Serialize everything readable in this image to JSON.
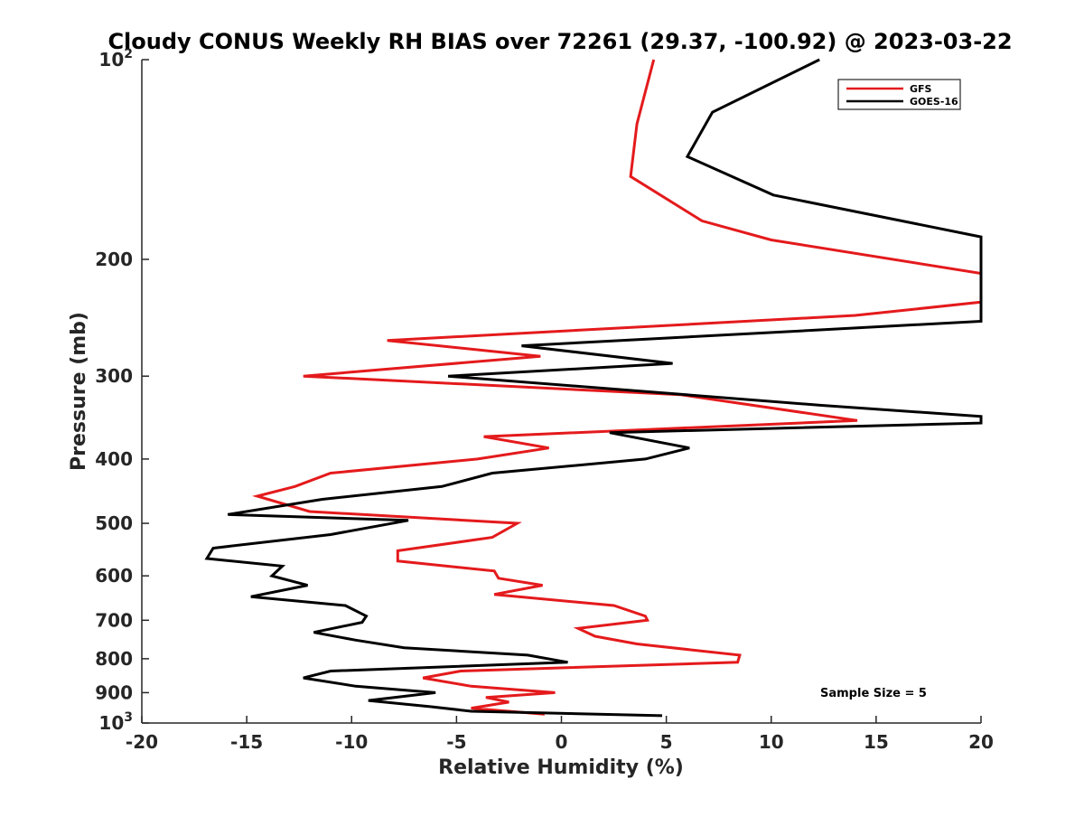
{
  "chart_data": {
    "type": "line",
    "title": "Cloudy CONUS Weekly RH BIAS over 72261 (29.37, -100.92) @ 2023-03-22",
    "xlabel": "Relative Humidity (%)",
    "ylabel": "Pressure (mb)",
    "xlim": [
      -20,
      20
    ],
    "ylim": [
      100,
      1000
    ],
    "y_scale": "log",
    "y_reversed": true,
    "grid": false,
    "legend_position": "top-right",
    "x_ticks": [
      {
        "value": -20,
        "label": "-20"
      },
      {
        "value": -15,
        "label": "-15"
      },
      {
        "value": -10,
        "label": "-10"
      },
      {
        "value": -5,
        "label": "-5"
      },
      {
        "value": 0,
        "label": "0"
      },
      {
        "value": 5,
        "label": "5"
      },
      {
        "value": 10,
        "label": "10"
      },
      {
        "value": 15,
        "label": "15"
      },
      {
        "value": 20,
        "label": "20"
      }
    ],
    "y_ticks": [
      {
        "value": 100,
        "label": "10",
        "sup": "2"
      },
      {
        "value": 200,
        "label": "200"
      },
      {
        "value": 300,
        "label": "300"
      },
      {
        "value": 400,
        "label": "400"
      },
      {
        "value": 500,
        "label": "500"
      },
      {
        "value": 600,
        "label": "600"
      },
      {
        "value": 700,
        "label": "700"
      },
      {
        "value": 800,
        "label": "800"
      },
      {
        "value": 900,
        "label": "900"
      },
      {
        "value": 1000,
        "label": "10",
        "sup": "3"
      }
    ],
    "annotation": "Sample Size = 5",
    "series": [
      {
        "name": "GFS",
        "color": "#e41a1c",
        "points": [
          [
            4.4,
            100
          ],
          [
            3.6,
            125
          ],
          [
            3.3,
            150
          ],
          [
            6.7,
            175
          ],
          [
            10.0,
            187
          ],
          [
            20.0,
            210
          ],
          [
            20.0,
            232
          ],
          [
            14.0,
            243
          ],
          [
            -8.3,
            265
          ],
          [
            -1.0,
            280
          ],
          [
            -12.3,
            300
          ],
          [
            5.7,
            320
          ],
          [
            14.1,
            350
          ],
          [
            -3.7,
            370
          ],
          [
            -0.6,
            385
          ],
          [
            -4.0,
            400
          ],
          [
            -11.0,
            420
          ],
          [
            -12.7,
            440
          ],
          [
            -14.5,
            455
          ],
          [
            -12.0,
            480
          ],
          [
            -2.1,
            500
          ],
          [
            -3.3,
            525
          ],
          [
            -7.8,
            550
          ],
          [
            -7.8,
            570
          ],
          [
            -3.2,
            590
          ],
          [
            -3.0,
            605
          ],
          [
            -0.9,
            620
          ],
          [
            -3.2,
            640
          ],
          [
            2.5,
            665
          ],
          [
            4.0,
            690
          ],
          [
            4.1,
            700
          ],
          [
            0.8,
            720
          ],
          [
            1.6,
            740
          ],
          [
            3.6,
            760
          ],
          [
            8.5,
            790
          ],
          [
            8.4,
            810
          ],
          [
            -4.8,
            835
          ],
          [
            -6.6,
            855
          ],
          [
            -4.3,
            880
          ],
          [
            -0.3,
            900
          ],
          [
            -3.6,
            915
          ],
          [
            -2.5,
            930
          ],
          [
            -4.3,
            950
          ],
          [
            -0.8,
            970
          ]
        ]
      },
      {
        "name": "GOES-16",
        "color": "#000000",
        "points": [
          [
            12.3,
            100
          ],
          [
            7.2,
            120
          ],
          [
            6.0,
            140
          ],
          [
            10.1,
            160
          ],
          [
            20.0,
            185
          ],
          [
            20.0,
            248
          ],
          [
            -1.9,
            270
          ],
          [
            5.3,
            287
          ],
          [
            -5.4,
            300
          ],
          [
            12.4,
            332
          ],
          [
            20.0,
            345
          ],
          [
            20.0,
            353
          ],
          [
            2.3,
            365
          ],
          [
            6.1,
            385
          ],
          [
            4.0,
            400
          ],
          [
            -3.3,
            420
          ],
          [
            -5.7,
            440
          ],
          [
            -11.4,
            460
          ],
          [
            -15.9,
            485
          ],
          [
            -7.3,
            495
          ],
          [
            -11.0,
            520
          ],
          [
            -16.6,
            545
          ],
          [
            -16.9,
            565
          ],
          [
            -13.3,
            580
          ],
          [
            -13.8,
            600
          ],
          [
            -12.1,
            620
          ],
          [
            -14.8,
            645
          ],
          [
            -10.3,
            665
          ],
          [
            -9.3,
            690
          ],
          [
            -9.5,
            705
          ],
          [
            -11.8,
            730
          ],
          [
            -9.8,
            750
          ],
          [
            -7.5,
            770
          ],
          [
            -1.6,
            790
          ],
          [
            0.3,
            810
          ],
          [
            -11.0,
            835
          ],
          [
            -12.3,
            855
          ],
          [
            -9.8,
            880
          ],
          [
            -6.0,
            900
          ],
          [
            -9.2,
            925
          ],
          [
            -6.2,
            945
          ],
          [
            -4.3,
            960
          ],
          [
            4.8,
            975
          ]
        ]
      }
    ]
  }
}
